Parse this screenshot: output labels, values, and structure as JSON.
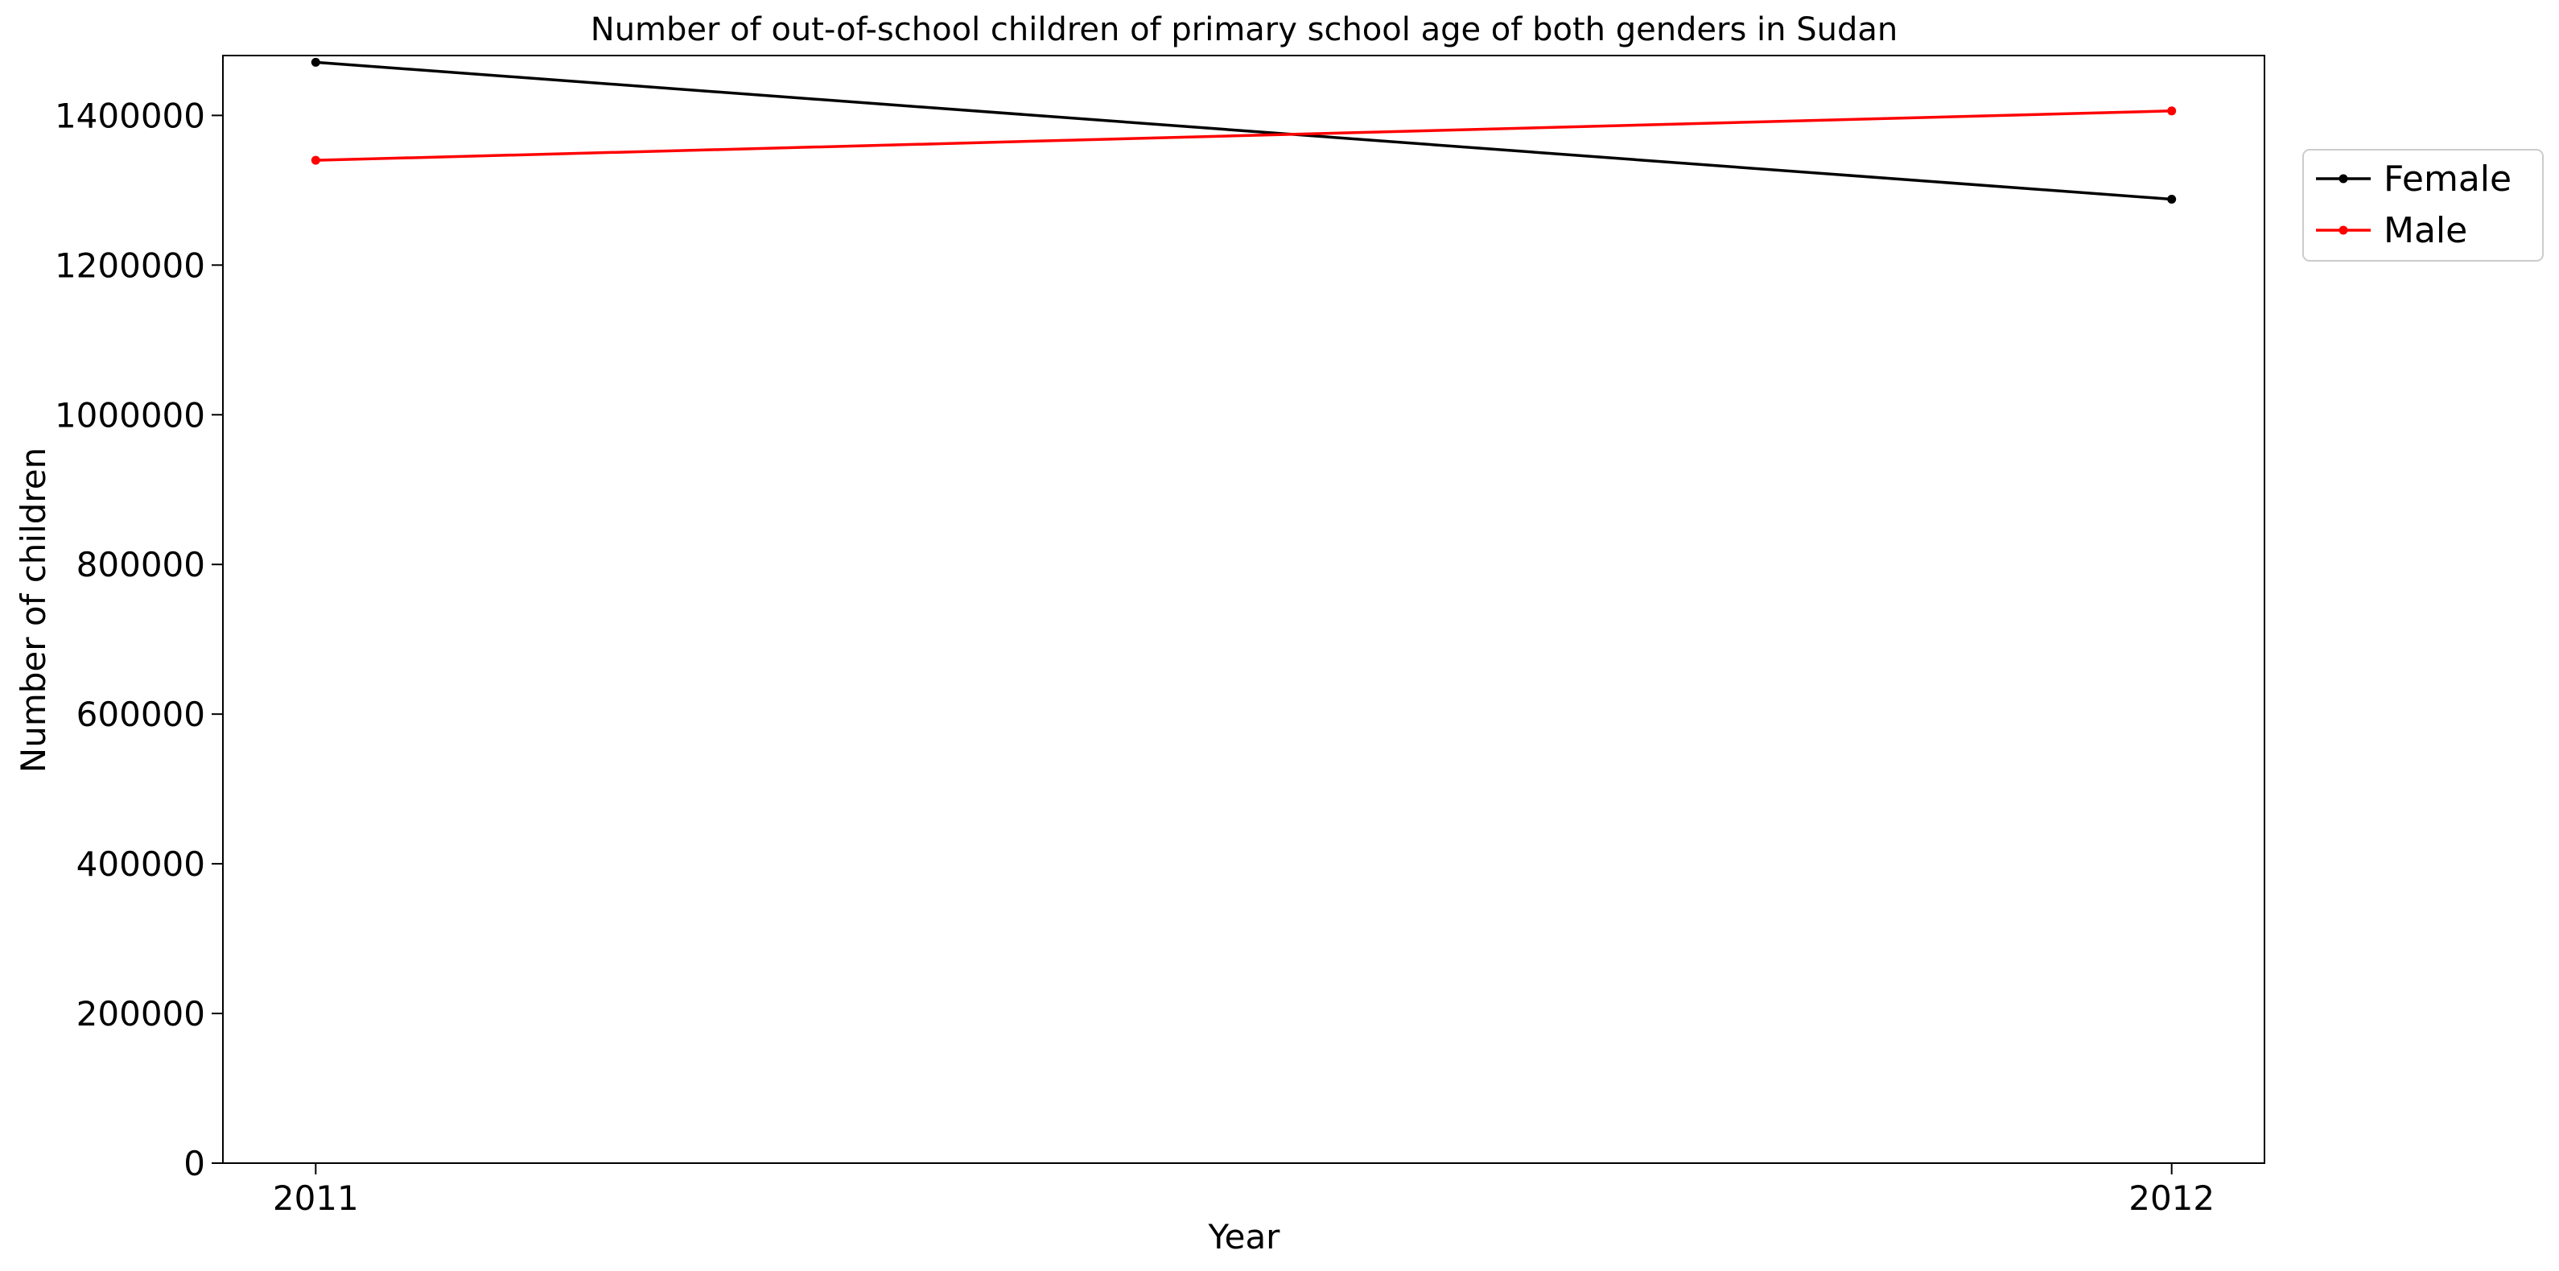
{
  "chart_data": {
    "type": "line",
    "title": "Number of out-of-school children of primary school age of both genders in Sudan",
    "xlabel": "Year",
    "ylabel": "Number of children",
    "x": [
      2011,
      2012
    ],
    "x_tick_labels": [
      "2011",
      "2012"
    ],
    "xlim": [
      2010.95,
      2012.05
    ],
    "ylim": [
      0,
      1480000
    ],
    "y_ticks": [
      0,
      200000,
      400000,
      600000,
      800000,
      1000000,
      1200000,
      1400000
    ],
    "y_tick_labels": [
      "0",
      "200000",
      "400000",
      "600000",
      "800000",
      "1000000",
      "1200000",
      "1400000"
    ],
    "grid": false,
    "legend_position": "outside-right-top",
    "series": [
      {
        "name": "Female",
        "color": "#000000",
        "values": [
          1471000,
          1288000
        ]
      },
      {
        "name": "Male",
        "color": "#ff0000",
        "values": [
          1340000,
          1406000
        ]
      }
    ]
  }
}
